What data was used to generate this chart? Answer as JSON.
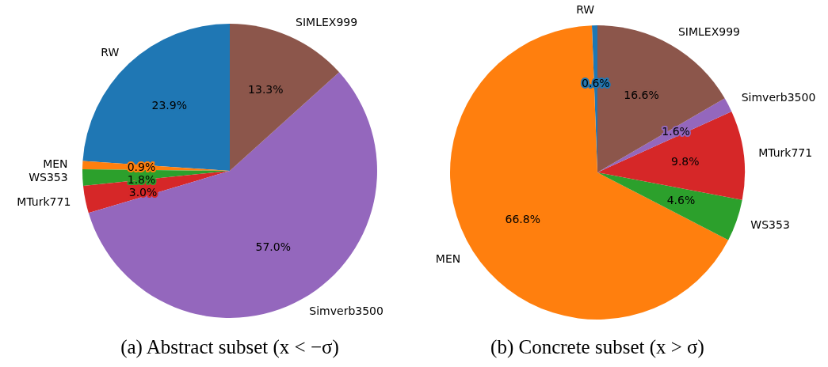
{
  "chart_data": [
    {
      "type": "pie",
      "title": "(a) Abstract subset (x < −σ)",
      "categories": [
        "RW",
        "MEN",
        "WS353",
        "MTurk771",
        "Simverb3500",
        "SIMLEX999"
      ],
      "values": [
        23.9,
        0.9,
        1.8,
        3.0,
        57.0,
        13.3
      ],
      "colors": [
        "#1f77b4",
        "#ff7f0e",
        "#2ca02c",
        "#d62728",
        "#9467bd",
        "#8c564b"
      ],
      "value_labels": [
        "23.9%",
        "0.9%",
        "1.8%",
        "3.0%",
        "57.0%",
        "13.3%"
      ],
      "legend": false
    },
    {
      "type": "pie",
      "title": "(b) Concrete subset (x > σ)",
      "categories": [
        "RW",
        "MEN",
        "WS353",
        "MTurk771",
        "Simverb3500",
        "SIMLEX999"
      ],
      "values": [
        0.6,
        66.8,
        4.6,
        9.8,
        1.6,
        16.6
      ],
      "colors": [
        "#1f77b4",
        "#ff7f0e",
        "#2ca02c",
        "#d62728",
        "#9467bd",
        "#8c564b"
      ],
      "value_labels": [
        "0.6%",
        "66.8%",
        "4.6%",
        "9.8%",
        "1.6%",
        "16.6%"
      ],
      "legend": false
    }
  ]
}
